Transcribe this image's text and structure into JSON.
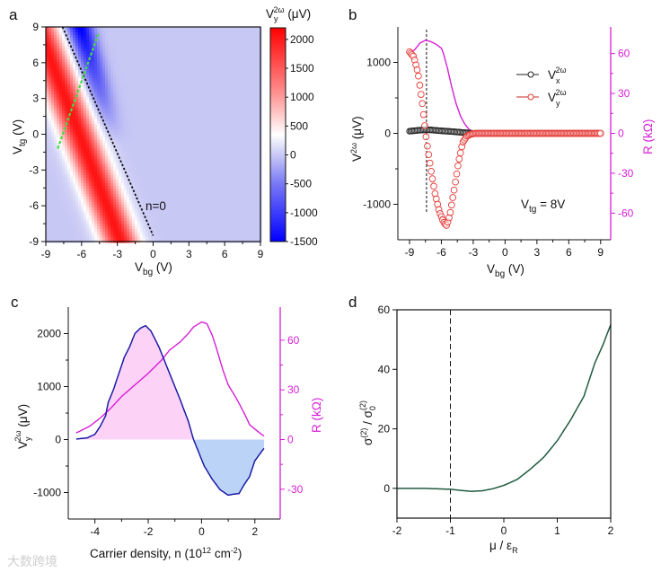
{
  "panel_labels": {
    "a": "a",
    "b": "b",
    "c": "c",
    "d": "d"
  },
  "watermark": "大数跨境",
  "colors": {
    "red": "#ff0000",
    "blue": "#0000ff",
    "magenta": "#d61fd6",
    "vy_marker": "#e53935",
    "vx_marker": "#222222",
    "c_line": "#1b1ba6",
    "c_fill_pos": "#fcd2f6",
    "c_fill_neg": "#bcd3f8",
    "d_line": "#1f5a3e",
    "green_dash": "#44dd44"
  },
  "labels": {
    "a": {
      "x_main": "V",
      "x_sub": "bg",
      "x_unit": " (V)",
      "y_main": "V",
      "y_sub": "tg",
      "y_unit": " (V)",
      "cb_main": "V",
      "cb_sub": "y",
      "cb_sup": "2ω",
      "cb_unit": " (μV)",
      "annotation": "n=0"
    },
    "b": {
      "x_main": "V",
      "x_sub": "bg",
      "x_unit": " (V)",
      "y_main": "V",
      "y_sup": "2ω",
      "y_unit": " (μV)",
      "y2": "R (kΩ)",
      "legend_vx_main": "V",
      "legend_vx_sub": "x",
      "legend_vx_sup": "2ω",
      "legend_vy_main": "V",
      "legend_vy_sub": "y",
      "legend_vy_sup": "2ω",
      "annot_main": "V",
      "annot_sub": "tg",
      "annot_rest": " = 8V"
    },
    "c": {
      "x_pre": "Carrier density, n (10",
      "x_sup1": "12",
      "x_mid": " cm",
      "x_sup2": "-2",
      "x_end": ")",
      "y_main": "V",
      "y_sub": "y",
      "y_sup": "2ω",
      "y_unit": " (μV)",
      "y2": "R (kΩ)"
    },
    "d": {
      "x_pre": "μ / ε",
      "x_sub": "R",
      "y_a": "σ",
      "y_a_sup": "(2)",
      "y_mid": " / σ",
      "y_b_sub": "0",
      "y_b_sup": "(2)"
    }
  },
  "chart_data": [
    {
      "id": "a",
      "type": "heatmap",
      "xlim": [
        -9,
        9
      ],
      "ylim": [
        -9,
        9
      ],
      "xticks": [
        -9,
        -6,
        -3,
        0,
        3,
        6,
        9
      ],
      "yticks": [
        -9,
        -6,
        -3,
        0,
        3,
        6,
        9
      ],
      "colorbar": {
        "range": [
          -1500,
          2200
        ],
        "ticks": [
          -1500,
          -1000,
          -500,
          0,
          500,
          1000,
          1500,
          2000
        ]
      },
      "n0_line": [
        [
          -7.6,
          9
        ],
        [
          0,
          -8.5
        ]
      ],
      "green_line": [
        [
          -8,
          -1.2
        ],
        [
          -4.6,
          8.4
        ]
      ]
    },
    {
      "id": "b",
      "type": "scatter",
      "xlim": [
        -10.1,
        9.95
      ],
      "ylim": [
        -1500,
        1500
      ],
      "y2lim": [
        -80,
        80
      ],
      "xticks": [
        -9,
        -6,
        -3,
        0,
        3,
        6,
        9
      ],
      "yticks": [
        -1000,
        0,
        1000
      ],
      "y2ticks": [
        -60,
        -30,
        0,
        30,
        60
      ],
      "vline": -7.4,
      "series": [
        {
          "name": "Vx 2ω",
          "axis": "left",
          "x": [
            -9,
            -8,
            -7.5,
            -7,
            -6,
            -5,
            -4,
            -3,
            9
          ],
          "y": [
            30,
            45,
            50,
            48,
            35,
            25,
            12,
            0,
            0
          ]
        },
        {
          "name": "Vy 2ω",
          "axis": "left",
          "x": [
            -9,
            -8.6,
            -8.2,
            -7.8,
            -7.4,
            -7,
            -6.6,
            -6.2,
            -5.8,
            -5.5,
            -5.2,
            -4.8,
            -4.4,
            -4,
            -3.6,
            -3.2,
            -2.8,
            9
          ],
          "y": [
            1150,
            1080,
            850,
            420,
            -100,
            -500,
            -850,
            -1100,
            -1250,
            -1300,
            -1150,
            -800,
            -420,
            -130,
            -40,
            -10,
            0,
            0
          ]
        },
        {
          "name": "R",
          "axis": "right",
          "x": [
            -9,
            -8.5,
            -8,
            -7.5,
            -7,
            -6.5,
            -6,
            -5.8,
            -5.4,
            -5,
            -4.6,
            -4.2,
            -3.8,
            -3.4,
            -3,
            -2.6,
            9
          ],
          "y": [
            60,
            63,
            68,
            70,
            69,
            67,
            64,
            60,
            48,
            34,
            22,
            13,
            7,
            3,
            1,
            0,
            0
          ]
        }
      ],
      "legend": "top-right"
    },
    {
      "id": "c",
      "type": "line",
      "xlim": [
        -5,
        2.95
      ],
      "ylim": [
        -1500,
        2500
      ],
      "y2lim": [
        -48,
        80
      ],
      "xticks": [
        -4,
        -2,
        0,
        2
      ],
      "yticks": [
        -1000,
        0,
        1000,
        2000
      ],
      "y2ticks": [
        -30,
        0,
        30,
        60
      ],
      "series": [
        {
          "name": "Vy 2ω",
          "axis": "left",
          "x": [
            -4.7,
            -4.3,
            -4,
            -3.8,
            -3.6,
            -3.5,
            -3.3,
            -3.1,
            -2.9,
            -2.7,
            -2.5,
            -2.3,
            -2.1,
            -1.9,
            -1.6,
            -1.2,
            -0.8,
            -0.5,
            -0.3,
            -0.1,
            0.1,
            0.4,
            0.7,
            1.0,
            1.2,
            1.4,
            1.6,
            1.8,
            2.0,
            2.35
          ],
          "y": [
            10,
            30,
            100,
            250,
            450,
            700,
            950,
            1250,
            1550,
            1750,
            2000,
            2100,
            2150,
            2050,
            1750,
            1250,
            750,
            350,
            0,
            -250,
            -500,
            -750,
            -950,
            -1050,
            -1030,
            -1020,
            -850,
            -700,
            -400,
            -160
          ]
        },
        {
          "name": "R",
          "axis": "right",
          "x": [
            -4.7,
            -4.2,
            -3.8,
            -3.4,
            -3,
            -2.5,
            -2,
            -1.5,
            -1.2,
            -0.8,
            -0.5,
            -0.3,
            0,
            0.2,
            0.4,
            0.6,
            0.8,
            1.0,
            1.3,
            1.6,
            1.8,
            2.1,
            2.35
          ],
          "y": [
            4,
            8,
            13,
            19,
            26,
            33,
            40,
            48,
            54,
            59,
            64,
            68,
            71,
            70,
            63,
            53,
            42,
            33,
            25,
            16,
            9,
            5,
            2
          ]
        }
      ]
    },
    {
      "id": "d",
      "type": "line",
      "xlim": [
        -2,
        2
      ],
      "ylim": [
        -10,
        60
      ],
      "xticks": [
        -2,
        -1,
        0,
        1,
        2
      ],
      "yticks": [
        0,
        20,
        40,
        60
      ],
      "vline": -1,
      "series": [
        {
          "name": "σ(2)/σ0(2)",
          "x": [
            -2,
            -1.5,
            -1,
            -0.8,
            -0.6,
            -0.4,
            -0.2,
            0,
            0.25,
            0.5,
            0.75,
            1,
            1.25,
            1.5,
            1.7,
            1.85,
            2
          ],
          "y": [
            0,
            0,
            -0.3,
            -0.7,
            -1,
            -0.8,
            -0.1,
            1,
            3,
            6.5,
            10.5,
            16,
            23,
            31,
            42,
            48,
            55
          ]
        }
      ]
    }
  ]
}
